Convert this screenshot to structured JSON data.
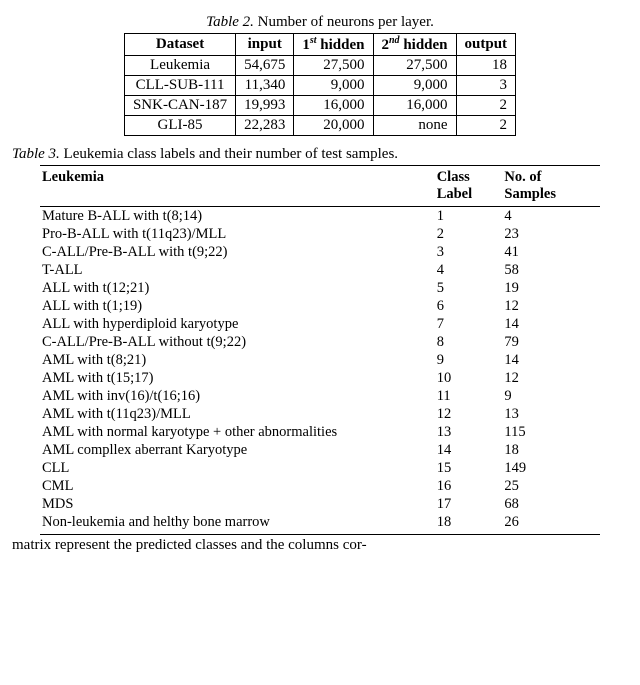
{
  "table2": {
    "caption_prefix": "Table 2.",
    "caption_text": "Number of neurons per layer.",
    "headers": {
      "dataset": "Dataset",
      "input": "input",
      "h1_pre": "1",
      "h1_sup": "st",
      "h1_post": " hidden",
      "h2_pre": "2",
      "h2_sup": "nd",
      "h2_post": " hidden",
      "output": "output"
    },
    "rows": [
      {
        "dataset": "Leukemia",
        "input": "54,675",
        "h1": "27,500",
        "h2": "27,500",
        "output": "18"
      },
      {
        "dataset": "CLL-SUB-111",
        "input": "11,340",
        "h1": "9,000",
        "h2": "9,000",
        "output": "3"
      },
      {
        "dataset": "SNK-CAN-187",
        "input": "19,993",
        "h1": "16,000",
        "h2": "16,000",
        "output": "2"
      },
      {
        "dataset": "GLI-85",
        "input": "22,283",
        "h1": "20,000",
        "h2": "none",
        "output": "2"
      }
    ]
  },
  "table3": {
    "caption_prefix": "Table 3.",
    "caption_text": "Leukemia class labels and their number of test samples.",
    "headers": {
      "name": "Leukemia",
      "label_l1": "Class",
      "label_l2": "Label",
      "samp_l1": "No. of",
      "samp_l2": "Samples"
    },
    "rows": [
      {
        "name": "Mature B-ALL with t(8;14)",
        "label": "1",
        "samp": "4"
      },
      {
        "name": "Pro-B-ALL with t(11q23)/MLL",
        "label": "2",
        "samp": "23"
      },
      {
        "name": "C-ALL/Pre-B-ALL with t(9;22)",
        "label": "3",
        "samp": "41"
      },
      {
        "name": "T-ALL",
        "label": "4",
        "samp": "58"
      },
      {
        "name": "ALL with t(12;21)",
        "label": "5",
        "samp": "19"
      },
      {
        "name": "ALL with t(1;19)",
        "label": "6",
        "samp": "12"
      },
      {
        "name": "ALL with hyperdiploid karyotype",
        "label": "7",
        "samp": "14"
      },
      {
        "name": "C-ALL/Pre-B-ALL without t(9;22)",
        "label": "8",
        "samp": "79"
      },
      {
        "name": "AML with t(8;21)",
        "label": "9",
        "samp": "14"
      },
      {
        "name": "AML with t(15;17)",
        "label": "10",
        "samp": "12"
      },
      {
        "name": "AML with inv(16)/t(16;16)",
        "label": "11",
        "samp": "9"
      },
      {
        "name": "AML with t(11q23)/MLL",
        "label": "12",
        "samp": "13"
      },
      {
        "name": "AML with normal karyotype + other abnormalities",
        "label": "13",
        "samp": "115"
      },
      {
        "name": "AML compllex aberrant Karyotype",
        "label": "14",
        "samp": "18"
      },
      {
        "name": "CLL",
        "label": "15",
        "samp": "149"
      },
      {
        "name": "CML",
        "label": "16",
        "samp": "25"
      },
      {
        "name": "MDS",
        "label": "17",
        "samp": "68"
      },
      {
        "name": "Non-leukemia and helthy bone marrow",
        "label": "18",
        "samp": "26"
      }
    ]
  },
  "trailing_text": "matrix represent the predicted classes and the columns cor-"
}
